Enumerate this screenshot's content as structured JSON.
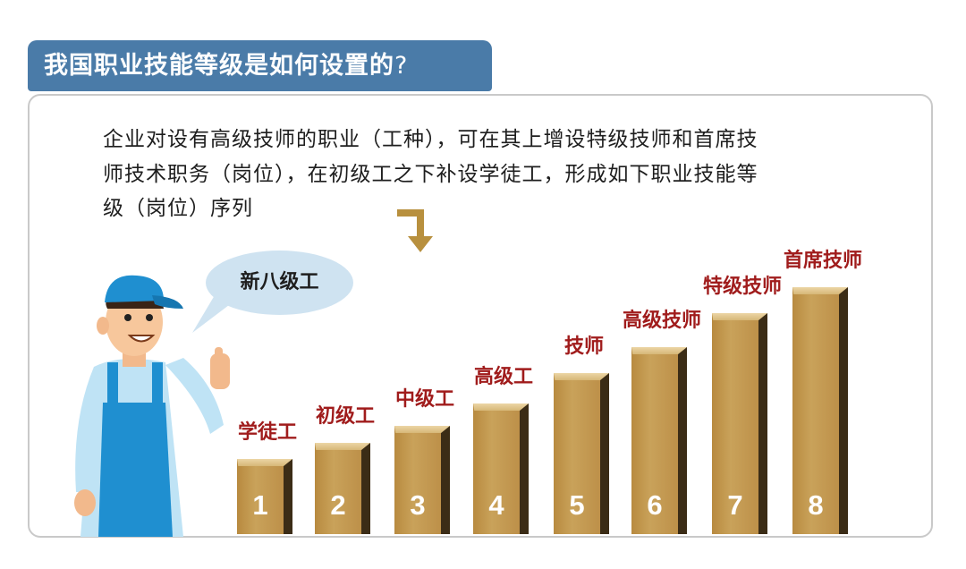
{
  "title": {
    "text": "我国职业技能等级是如何设置的",
    "mark": "?"
  },
  "description": [
    "企业对设有高级技师的职业（工种），可在其上增设特级技师和首席技",
    "师技术职务（岗位），在初级工之下补设学徒工，形成如下职业技能等",
    "级（岗位）序列"
  ],
  "speech_bubble": "新八级工",
  "levels": [
    {
      "level": "1",
      "name": "学徒工"
    },
    {
      "level": "2",
      "name": "初级工"
    },
    {
      "level": "3",
      "name": "中级工"
    },
    {
      "level": "4",
      "name": "高级工"
    },
    {
      "level": "5",
      "name": "技师"
    },
    {
      "level": "6",
      "name": "高级技师"
    },
    {
      "level": "7",
      "name": "特级技师"
    },
    {
      "level": "8",
      "name": "首席技师"
    }
  ],
  "colors": {
    "title_bg": "#4a7ba8",
    "bar": "#c49a4f",
    "label": "#a01c1c",
    "bubble": "#cfe3f1"
  }
}
